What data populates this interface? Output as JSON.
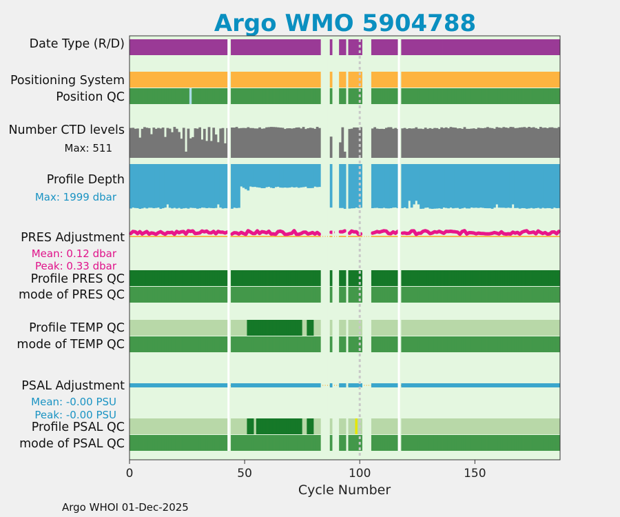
{
  "chart_data": {
    "type": "timeline",
    "title": "Argo WMO 5904788",
    "xlabel": "Cycle Number",
    "xlim": [
      0,
      187
    ],
    "xticks": [
      0,
      50,
      100,
      150
    ],
    "footer": "Argo WHOI 01-Dec-2025",
    "missing_cycles": [
      43,
      83,
      84,
      85,
      86,
      88,
      89,
      90,
      94,
      101,
      102,
      103,
      104,
      117
    ],
    "descending_marker_cycle": 100,
    "rows": [
      {
        "key": "date_type",
        "label": "Date Type (R/D)"
      },
      {
        "key": "positioning",
        "label": "Positioning System"
      },
      {
        "key": "position_qc",
        "label": "Position QC",
        "exceptions": [
          {
            "cycle": 26,
            "state": "light"
          },
          {
            "cycle": 89,
            "state": "light"
          },
          {
            "cycle": 102,
            "state": "light"
          }
        ]
      },
      {
        "key": "ctd_levels",
        "label": "Number CTD levels",
        "stat": "Max: 511",
        "max": 511
      },
      {
        "key": "profile_depth",
        "label": "Profile Depth",
        "stat": "Max: 1999 dbar",
        "max": 1999
      },
      {
        "key": "pres_adjustment",
        "label": "PRES Adjustment",
        "stats": [
          "Mean: 0.12 dbar",
          "Peak: 0.33 dbar"
        ],
        "mean": 0.12,
        "peak": 0.33
      },
      {
        "key": "profile_pres_qc",
        "label": "Profile PRES QC"
      },
      {
        "key": "mode_pres_qc",
        "label": "mode of PRES QC"
      },
      {
        "key": "profile_temp_qc",
        "label": "Profile TEMP QC",
        "dark_ranges": [
          [
            51,
            74
          ],
          [
            77,
            79
          ]
        ]
      },
      {
        "key": "mode_temp_qc",
        "label": "mode of TEMP QC"
      },
      {
        "key": "psal_adjustment",
        "label": "PSAL Adjustment",
        "stats": [
          "Mean: -0.00 PSU",
          "Peak: -0.00 PSU"
        ],
        "mean": -0.0,
        "peak": -0.0
      },
      {
        "key": "profile_psal_qc",
        "label": "Profile PSAL QC",
        "dark_ranges": [
          [
            51,
            53
          ],
          [
            55,
            65
          ],
          [
            66,
            74
          ],
          [
            77,
            79
          ]
        ],
        "flag_cycle": 98
      },
      {
        "key": "mode_psal_qc",
        "label": "mode of PSAL QC"
      }
    ],
    "colors": {
      "background": "#e4f7e0",
      "date_type": "#9a3a96",
      "positioning": "#fdb440",
      "position_qc": "#43984a",
      "position_qc_light": "#aadbe8",
      "ctd_levels": "#767676",
      "profile_depth": "#44aacf",
      "pres_adjustment": "#e8168a",
      "qc_dark": "#157828",
      "qc_mid": "#43984a",
      "qc_light": "#b8d8a8",
      "psal_adjustment": "#3aa6cc",
      "zero_line": "#f5b850",
      "flag": "#e6e600",
      "title": "#0a8fc0",
      "stat_pres": "#e0128a",
      "stat_psal": "#1a93c3"
    }
  }
}
